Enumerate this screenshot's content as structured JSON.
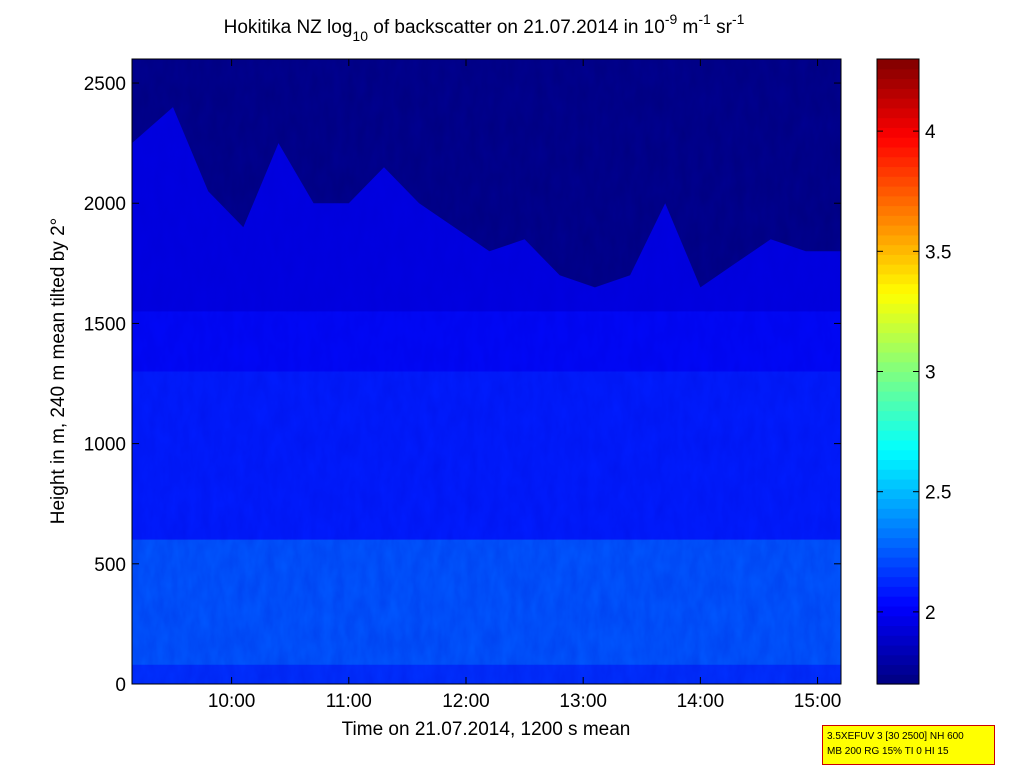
{
  "chart_data": {
    "type": "heatmap",
    "title": {
      "prefix": "Hokitika NZ log",
      "sub": "10",
      "middle": " of backscatter on 21.07.2014 in 10",
      "sup1": "-9",
      "unit1": " m",
      "sup2": "-1",
      "unit2": " sr",
      "sup3": "-1"
    },
    "xlabel": "Time on 21.07.2014, 1200 s mean",
    "ylabel": "Height in m, 240 m mean tilted by 2°",
    "x_ticks": [
      "10:00",
      "11:00",
      "12:00",
      "13:00",
      "14:00",
      "15:00"
    ],
    "x_tick_hours": [
      10,
      11,
      12,
      13,
      14,
      15
    ],
    "xlim_hours": [
      9.15,
      15.2
    ],
    "y_ticks": [
      0,
      500,
      1000,
      1500,
      2000,
      2500
    ],
    "ylim": [
      0,
      2600
    ],
    "colorbar": {
      "ticks": [
        "2",
        "2.5",
        "3",
        "3.5",
        "4"
      ],
      "tick_values": [
        2,
        2.5,
        3,
        3.5,
        4
      ],
      "clim": [
        1.7,
        4.3
      ],
      "colormap": "jet"
    },
    "description_values": {
      "surface_layer": 2.25,
      "lower_layer_0_600m": 2.25,
      "mid_layer_600_1500m": 2.1,
      "upper_mixing_1500_2200m": 1.95,
      "above_boundary": 1.7
    },
    "boundary_top_profile": {
      "hours": [
        9.15,
        9.5,
        9.8,
        10.1,
        10.4,
        10.7,
        11.0,
        11.3,
        11.6,
        11.9,
        12.2,
        12.5,
        12.8,
        13.1,
        13.4,
        13.7,
        14.0,
        14.3,
        14.6,
        14.9,
        15.2
      ],
      "height_m": [
        2250,
        2400,
        2050,
        1900,
        2250,
        2000,
        2000,
        2150,
        2000,
        1900,
        1800,
        1850,
        1700,
        1650,
        1700,
        2000,
        1650,
        1750,
        1850,
        1800,
        1800
      ]
    }
  },
  "info_box": {
    "line1": "3.5XEFUV 3 [30 2500] NH 600",
    "line2": "MB 200 RG 15% TI 0 HI 15"
  }
}
